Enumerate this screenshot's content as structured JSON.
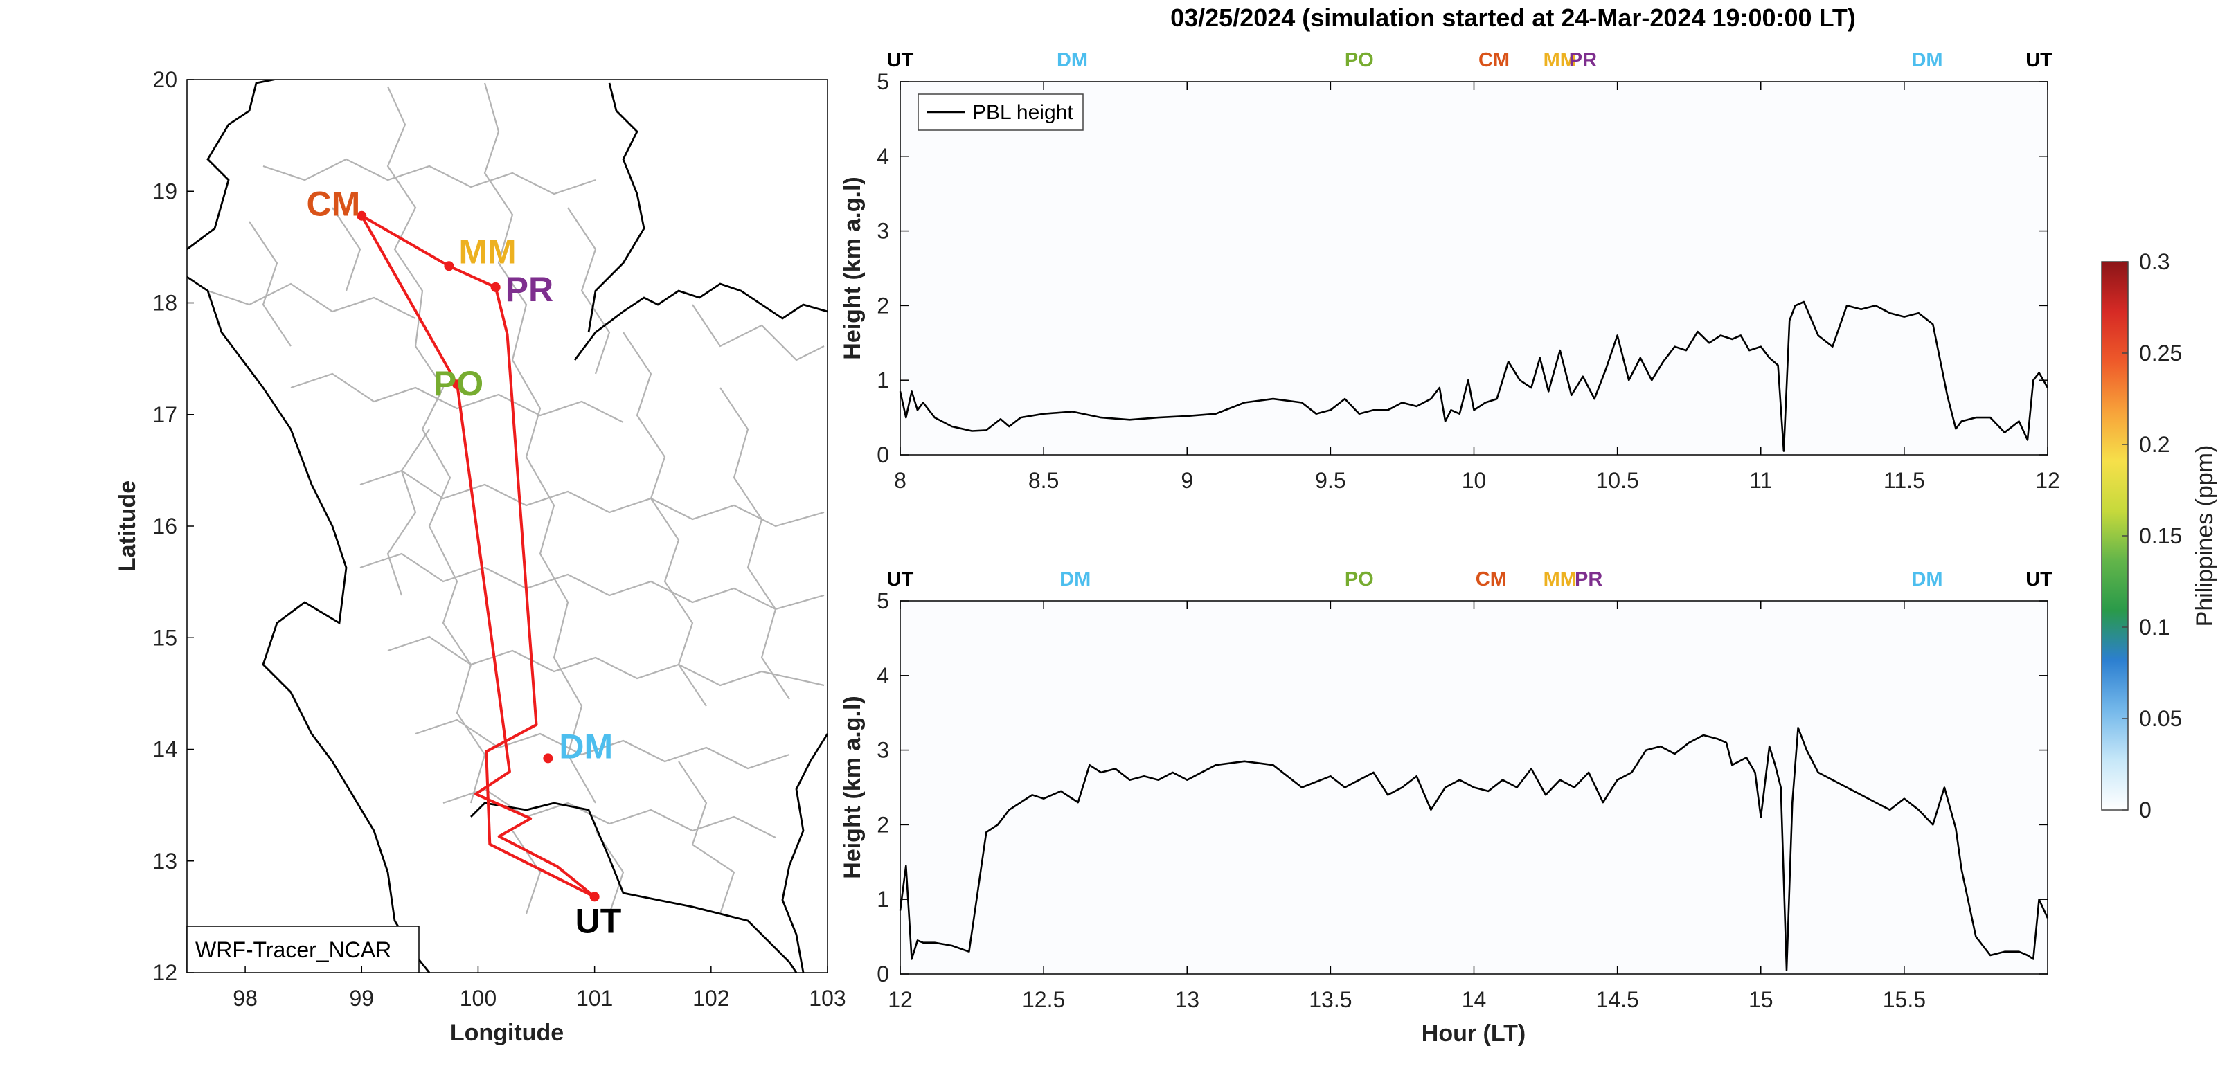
{
  "figure": {
    "title": "03/25/2024 (simulation started at 24-Mar-2024 19:00:00 LT)"
  },
  "map": {
    "xlabel": "Longitude",
    "ylabel": "Latitude",
    "xlim": [
      97.5,
      103
    ],
    "ylim": [
      12,
      20
    ],
    "xticks": [
      "98",
      "99",
      "100",
      "101",
      "102",
      "103"
    ],
    "yticks": [
      "12",
      "13",
      "14",
      "15",
      "16",
      "17",
      "18",
      "19",
      "20"
    ],
    "model_label": "WRF-Tracer_NCAR",
    "route_color": "#ee1c1c",
    "route": [
      [
        101.0,
        12.68
      ],
      [
        100.1,
        13.15
      ],
      [
        100.07,
        13.98
      ],
      [
        100.5,
        14.22
      ],
      [
        100.25,
        17.72
      ],
      [
        100.15,
        18.14
      ],
      [
        99.75,
        18.33
      ],
      [
        99.0,
        18.78
      ],
      [
        99.82,
        17.27
      ],
      [
        100.27,
        13.8
      ],
      [
        99.98,
        13.6
      ],
      [
        100.45,
        13.38
      ],
      [
        100.18,
        13.22
      ],
      [
        100.68,
        12.95
      ],
      [
        101.0,
        12.68
      ]
    ],
    "stations": [
      {
        "code": "CM",
        "lon": 99.0,
        "lat": 18.78,
        "color": "#d95319"
      },
      {
        "code": "MM",
        "lon": 99.75,
        "lat": 18.33,
        "color": "#edb120"
      },
      {
        "code": "PR",
        "lon": 100.15,
        "lat": 18.14,
        "color": "#7e2f8e"
      },
      {
        "code": "PO",
        "lon": 99.82,
        "lat": 17.27,
        "color": "#77ac30"
      },
      {
        "code": "DM",
        "lon": 100.6,
        "lat": 13.92,
        "color": "#4dbeee"
      },
      {
        "code": "UT",
        "lon": 101.0,
        "lat": 12.68,
        "color": "#000000"
      }
    ]
  },
  "station_labels": [
    {
      "code": "UT",
      "color": "#000000"
    },
    {
      "code": "DM",
      "color": "#4dbeee"
    },
    {
      "code": "PO",
      "color": "#77ac30"
    },
    {
      "code": "CM",
      "color": "#d95319"
    },
    {
      "code": "MM",
      "color": "#edb120"
    },
    {
      "code": "PR",
      "color": "#7e2f8e"
    },
    {
      "code": "DM",
      "color": "#4dbeee"
    },
    {
      "code": "UT",
      "color": "#000000"
    }
  ],
  "colorbar": {
    "label": "Philippines (ppm)",
    "range": [
      0,
      0.3
    ],
    "ticks": [
      "0",
      "0.05",
      "0.1",
      "0.15",
      "0.2",
      "0.25",
      "0.3"
    ],
    "colors": [
      "#ffffff",
      "#c6e7f8",
      "#74b8ea",
      "#2c7fd0",
      "#2a9a4a",
      "#63b54a",
      "#c6d93c",
      "#f6e04a",
      "#f7a23a",
      "#ee5a2a",
      "#d62a25",
      "#8b1518"
    ]
  },
  "chart_data": [
    {
      "type": "line",
      "ylabel": "Height (km a.g.l)",
      "xlabel": "",
      "xlim": [
        8,
        12
      ],
      "ylim": [
        0,
        5
      ],
      "xticks": [
        "8",
        "8.5",
        "9",
        "9.5",
        "10",
        "10.5",
        "11",
        "11.5",
        "12"
      ],
      "yticks": [
        "0",
        "1",
        "2",
        "3",
        "4",
        "5"
      ],
      "station_marks": [
        8.0,
        8.6,
        9.6,
        10.07,
        10.3,
        10.38,
        11.58,
        11.97
      ],
      "legend": [
        "PBL height"
      ],
      "series": [
        {
          "name": "PBL height",
          "x": [
            8.0,
            8.02,
            8.04,
            8.06,
            8.08,
            8.12,
            8.18,
            8.25,
            8.3,
            8.35,
            8.38,
            8.42,
            8.5,
            8.6,
            8.7,
            8.8,
            8.9,
            9.0,
            9.1,
            9.2,
            9.3,
            9.4,
            9.45,
            9.5,
            9.55,
            9.6,
            9.65,
            9.7,
            9.75,
            9.8,
            9.85,
            9.88,
            9.9,
            9.92,
            9.95,
            9.98,
            10.0,
            10.04,
            10.08,
            10.12,
            10.16,
            10.2,
            10.23,
            10.26,
            10.3,
            10.34,
            10.38,
            10.42,
            10.46,
            10.5,
            10.54,
            10.58,
            10.62,
            10.66,
            10.7,
            10.74,
            10.78,
            10.82,
            10.86,
            10.9,
            10.93,
            10.96,
            11.0,
            11.03,
            11.06,
            11.08,
            11.1,
            11.12,
            11.15,
            11.2,
            11.25,
            11.3,
            11.35,
            11.4,
            11.45,
            11.5,
            11.55,
            11.6,
            11.65,
            11.68,
            11.7,
            11.75,
            11.8,
            11.85,
            11.9,
            11.93,
            11.95,
            11.97,
            12.0
          ],
          "values": [
            0.85,
            0.5,
            0.85,
            0.6,
            0.7,
            0.5,
            0.38,
            0.32,
            0.33,
            0.48,
            0.38,
            0.5,
            0.55,
            0.58,
            0.5,
            0.47,
            0.5,
            0.52,
            0.55,
            0.7,
            0.75,
            0.7,
            0.55,
            0.6,
            0.75,
            0.55,
            0.6,
            0.6,
            0.7,
            0.65,
            0.75,
            0.9,
            0.45,
            0.6,
            0.55,
            1.0,
            0.6,
            0.7,
            0.75,
            1.25,
            1.0,
            0.9,
            1.3,
            0.85,
            1.4,
            0.8,
            1.05,
            0.75,
            1.15,
            1.6,
            1.0,
            1.3,
            1.0,
            1.25,
            1.45,
            1.4,
            1.65,
            1.5,
            1.6,
            1.55,
            1.6,
            1.4,
            1.45,
            1.3,
            1.2,
            0.05,
            1.8,
            2.0,
            2.05,
            1.6,
            1.45,
            2.0,
            1.95,
            2.0,
            1.9,
            1.85,
            1.9,
            1.75,
            0.8,
            0.35,
            0.45,
            0.5,
            0.5,
            0.3,
            0.45,
            0.2,
            1.0,
            1.1,
            0.9
          ]
        }
      ]
    },
    {
      "type": "line",
      "ylabel": "Height (km a.g.l)",
      "xlabel": "Hour (LT)",
      "xlim": [
        12,
        16
      ],
      "ylim": [
        0,
        5
      ],
      "xticks": [
        "12",
        "12.5",
        "13",
        "13.5",
        "14",
        "14.5",
        "15",
        "15.5"
      ],
      "yticks": [
        "0",
        "1",
        "2",
        "3",
        "4",
        "5"
      ],
      "station_marks": [
        12.0,
        12.61,
        13.6,
        14.06,
        14.3,
        14.4,
        15.58,
        15.97
      ],
      "series": [
        {
          "name": "PBL height",
          "x": [
            12.0,
            12.02,
            12.04,
            12.06,
            12.08,
            12.12,
            12.18,
            12.24,
            12.3,
            12.34,
            12.38,
            12.42,
            12.46,
            12.5,
            12.56,
            12.62,
            12.66,
            12.7,
            12.75,
            12.8,
            12.85,
            12.9,
            12.95,
            13.0,
            13.1,
            13.2,
            13.3,
            13.4,
            13.5,
            13.55,
            13.6,
            13.65,
            13.7,
            13.75,
            13.8,
            13.85,
            13.9,
            13.95,
            14.0,
            14.05,
            14.1,
            14.15,
            14.2,
            14.25,
            14.3,
            14.35,
            14.4,
            14.45,
            14.5,
            14.55,
            14.6,
            14.65,
            14.7,
            14.75,
            14.8,
            14.85,
            14.88,
            14.9,
            14.95,
            14.98,
            15.0,
            15.03,
            15.05,
            15.07,
            15.09,
            15.11,
            15.13,
            15.16,
            15.2,
            15.25,
            15.3,
            15.35,
            15.4,
            15.45,
            15.5,
            15.55,
            15.6,
            15.64,
            15.68,
            15.7,
            15.75,
            15.8,
            15.85,
            15.9,
            15.93,
            15.95,
            15.97,
            16.0
          ],
          "values": [
            0.85,
            1.45,
            0.2,
            0.45,
            0.42,
            0.42,
            0.38,
            0.3,
            1.9,
            2.0,
            2.2,
            2.3,
            2.4,
            2.35,
            2.45,
            2.3,
            2.8,
            2.7,
            2.75,
            2.6,
            2.65,
            2.6,
            2.7,
            2.6,
            2.8,
            2.85,
            2.8,
            2.5,
            2.65,
            2.5,
            2.6,
            2.7,
            2.4,
            2.5,
            2.65,
            2.2,
            2.5,
            2.6,
            2.5,
            2.45,
            2.6,
            2.5,
            2.75,
            2.4,
            2.6,
            2.5,
            2.7,
            2.3,
            2.6,
            2.7,
            3.0,
            3.05,
            2.95,
            3.1,
            3.2,
            3.15,
            3.1,
            2.8,
            2.9,
            2.7,
            2.1,
            3.05,
            2.8,
            2.5,
            0.05,
            2.3,
            3.3,
            3.0,
            2.7,
            2.6,
            2.5,
            2.4,
            2.3,
            2.2,
            2.35,
            2.2,
            2.0,
            2.5,
            1.95,
            1.4,
            0.5,
            0.25,
            0.3,
            0.3,
            0.25,
            0.2,
            1.0,
            0.75
          ]
        }
      ]
    }
  ]
}
